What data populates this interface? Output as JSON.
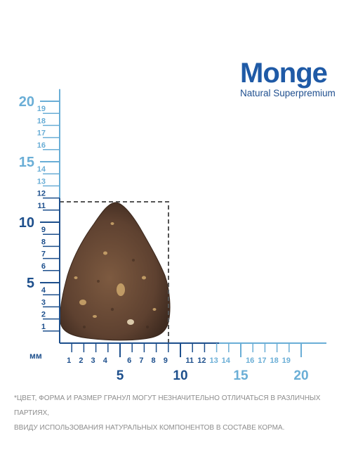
{
  "brand": {
    "name": "Monge",
    "tagline": "Natural Superpremium"
  },
  "ruler": {
    "unit": "мм",
    "x_labels_small": [
      1,
      2,
      3,
      4,
      6,
      7,
      8,
      9,
      11,
      12,
      13,
      14,
      16,
      17,
      18,
      19
    ],
    "x_labels_large": [
      5,
      10,
      15,
      20
    ],
    "y_labels_small": [
      1,
      2,
      3,
      4,
      6,
      7,
      8,
      9,
      11,
      12,
      13,
      14,
      16,
      17,
      18,
      19
    ],
    "y_labels_large": [
      5,
      10,
      15,
      20
    ],
    "colors": {
      "dark": "#1d4f8c",
      "light": "#6aaed6"
    }
  },
  "kibble": {
    "width_mm": 9,
    "height_mm": 11,
    "color": "#6b4a35"
  },
  "disclaimer": {
    "line1": "*ЦВЕТ, ФОРМА И РАЗМЕР ГРАНУЛ МОГУТ НЕЗНАЧИТЕЛЬНО ОТЛИЧАТЬСЯ В РАЗЛИЧНЫХ ПАРТИЯХ,",
    "line2": "ВВИДУ ИСПОЛЬЗОВАНИЯ НАТУРАЛЬНЫХ КОМПОНЕНТОВ В СОСТАВЕ КОРМА."
  }
}
